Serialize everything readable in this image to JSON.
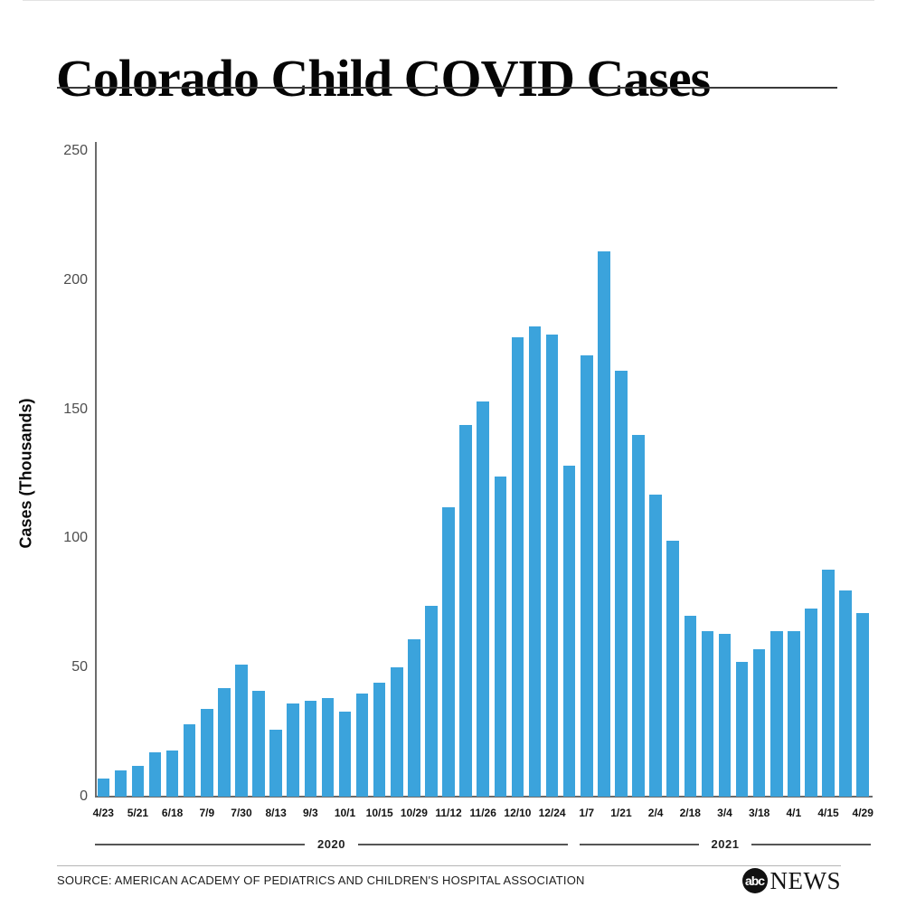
{
  "title": "Colorado Child COVID Cases",
  "source": "SOURCE: AMERICAN ACADEMY OF PEDIATRICS AND CHILDREN'S HOSPITAL ASSOCIATION",
  "logo": {
    "badge": "abc",
    "wordmark": "NEWS"
  },
  "chart_data": {
    "type": "bar",
    "title": "Colorado Child COVID Cases",
    "xlabel": "",
    "ylabel": "Cases (Thousands)",
    "ylim": [
      0,
      250
    ],
    "y_ticks": [
      0,
      50,
      100,
      150,
      200,
      250
    ],
    "grid": false,
    "legend": false,
    "bar_color": "#3BA3DC",
    "categories": [
      "4/23",
      "",
      "5/21",
      "",
      "6/18",
      "",
      "7/9",
      "",
      "7/30",
      "",
      "8/13",
      "",
      "9/3",
      "",
      "10/1",
      "",
      "10/15",
      "",
      "10/29",
      "",
      "11/12",
      "",
      "11/26",
      "",
      "12/10",
      "",
      "12/24",
      "",
      "1/7",
      "",
      "1/21",
      "",
      "2/4",
      "",
      "2/18",
      "",
      "3/4",
      "",
      "3/18",
      "",
      "4/1",
      "",
      "4/15",
      "",
      "4/29"
    ],
    "values": [
      7,
      10,
      12,
      17,
      18,
      28,
      34,
      42,
      51,
      41,
      26,
      36,
      37,
      38,
      33,
      40,
      44,
      50,
      61,
      74,
      112,
      144,
      153,
      124,
      178,
      182,
      179,
      128,
      171,
      211,
      165,
      140,
      117,
      99,
      70,
      64,
      63,
      52,
      57,
      64,
      64,
      73,
      88,
      80,
      71
    ],
    "x_tick_labels": [
      "4/23",
      "5/21",
      "6/18",
      "7/9",
      "7/30",
      "8/13",
      "9/3",
      "10/1",
      "10/15",
      "10/29",
      "11/12",
      "11/26",
      "12/10",
      "12/24",
      "1/7",
      "1/21",
      "2/4",
      "2/18",
      "3/4",
      "3/18",
      "4/1",
      "4/15",
      "4/29"
    ],
    "year_groups": [
      {
        "label": "2020",
        "first_bar_index": 0,
        "last_bar_index": 27
      },
      {
        "label": "2021",
        "first_bar_index": 28,
        "last_bar_index": 44
      }
    ]
  }
}
